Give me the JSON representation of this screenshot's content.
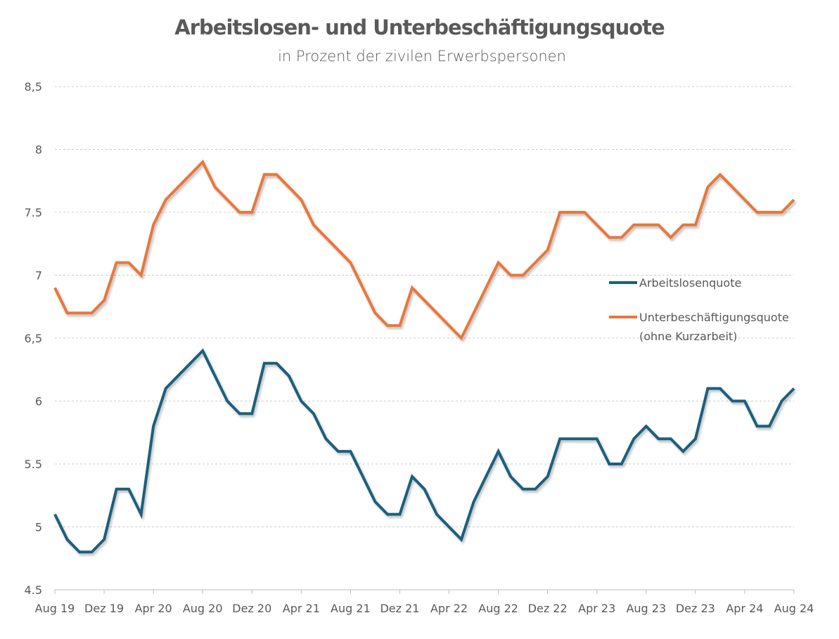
{
  "chart_data": {
    "type": "line",
    "title": "Arbeitslosen- und Unterbeschäftigungsquote",
    "subtitle": "in Prozent der zivilen Erwerbspersonen",
    "xlabel": "",
    "ylabel": "",
    "ylim": [
      4.5,
      8.5
    ],
    "yticks": [
      8.5,
      8,
      7.5,
      7,
      6.5,
      6,
      5.5,
      5,
      4.5
    ],
    "ytick_labels": [
      "8,5",
      "8",
      "7.5",
      "7",
      "6,5",
      "6",
      "5.5",
      "5",
      "4.5"
    ],
    "x_start": "Aug 19",
    "x_end": "Aug 24",
    "x_frequency": "monthly",
    "xtick_labels": [
      "Aug 19",
      "Dez 19",
      "Apr 20",
      "Aug 20",
      "Dez 20",
      "Apr 21",
      "Aug 21",
      "Dez 21",
      "Apr 22",
      "Aug 22",
      "Dez 22",
      "Apr 23",
      "Aug 23",
      "Dez 23",
      "Apr 24",
      "Aug 24"
    ],
    "grid": "horizontal dashed",
    "legend_placement": "center-right",
    "series": [
      {
        "name": "Arbeitslosenquote",
        "color": "#1d5e7e",
        "values": [
          5.1,
          4.9,
          4.8,
          4.8,
          4.9,
          5.3,
          5.3,
          5.1,
          5.8,
          6.1,
          6.2,
          6.3,
          6.4,
          6.2,
          6.0,
          5.9,
          5.9,
          6.3,
          6.3,
          6.2,
          6.0,
          5.9,
          5.7,
          5.6,
          5.6,
          5.4,
          5.2,
          5.1,
          5.1,
          5.4,
          5.3,
          5.1,
          5.0,
          4.9,
          5.2,
          5.4,
          5.6,
          5.4,
          5.3,
          5.3,
          5.4,
          5.7,
          5.7,
          5.7,
          5.7,
          5.5,
          5.5,
          5.7,
          5.8,
          5.7,
          5.7,
          5.6,
          5.7,
          6.1,
          6.1,
          6.0,
          6.0,
          5.8,
          5.8,
          6.0,
          6.1
        ]
      },
      {
        "name": "Unterbeschäftigungsquote",
        "name_line2": "(ohne Kurzarbeit)",
        "color": "#e8773a",
        "values": [
          6.9,
          6.7,
          6.7,
          6.7,
          6.8,
          7.1,
          7.1,
          7.0,
          7.4,
          7.6,
          7.7,
          7.8,
          7.9,
          7.7,
          7.6,
          7.5,
          7.5,
          7.8,
          7.8,
          7.7,
          7.6,
          7.4,
          7.3,
          7.2,
          7.1,
          6.9,
          6.7,
          6.6,
          6.6,
          6.9,
          6.8,
          6.7,
          6.6,
          6.5,
          6.7,
          6.9,
          7.1,
          7.0,
          7.0,
          7.1,
          7.2,
          7.5,
          7.5,
          7.5,
          7.4,
          7.3,
          7.3,
          7.4,
          7.4,
          7.4,
          7.3,
          7.4,
          7.4,
          7.7,
          7.8,
          7.7,
          7.6,
          7.5,
          7.5,
          7.5,
          7.6
        ]
      }
    ]
  }
}
